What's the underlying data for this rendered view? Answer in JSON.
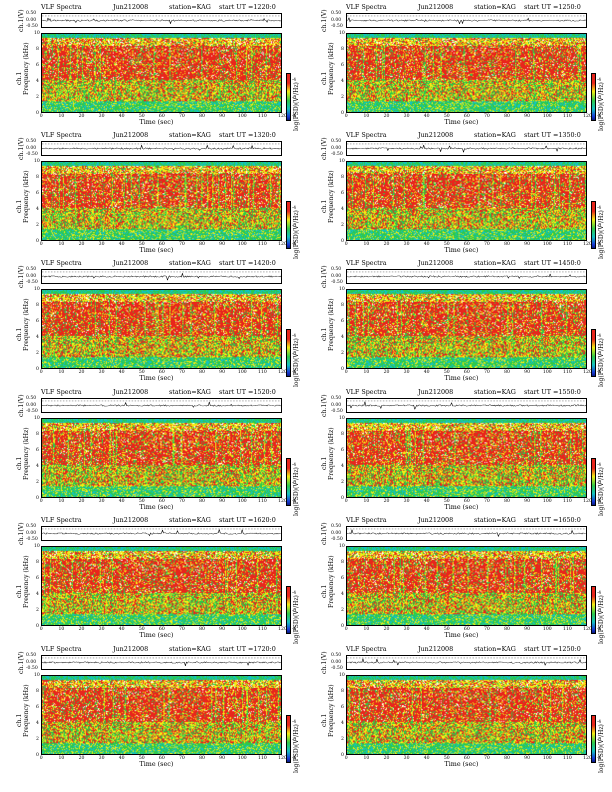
{
  "common": {
    "title": "VLF Spectra",
    "date": "Jun212008",
    "station": "station=KAG",
    "start_prefix": "start  UT  =",
    "ts_ylabel": "ch.1(V)",
    "spec_ylabel_line1": "ch.1",
    "spec_ylabel_line2": "Frequency  (kHz)",
    "xlabel": "Time  (sec)",
    "cbar_label": "log(PSD)(V²/Hz)",
    "ts_ticks": [
      "0.50",
      "0.00",
      "-0.50"
    ],
    "freq_ticks": [
      "10",
      "8",
      "6",
      "4",
      "2",
      "0"
    ],
    "time_ticks": [
      "0",
      "10",
      "20",
      "30",
      "40",
      "50",
      "60",
      "70",
      "80",
      "90",
      "100",
      "110",
      "120"
    ],
    "cbar_ticks": [
      "-4",
      "-5",
      "-6"
    ],
    "colors": {
      "red": "#e8261c",
      "yellow": "#f4ec14",
      "green": "#2fc94a",
      "cyan": "#14c2c2",
      "white": "#ffffff",
      "blue": "#1a3cd8"
    }
  },
  "chart_data": [
    {
      "type": "heatmap",
      "start_time": "1220:0",
      "xlim": [
        0,
        120
      ],
      "ylim": [
        0,
        10
      ],
      "ts_ylim": [
        -0.5,
        0.5
      ],
      "xlabel": "Time  (sec)",
      "ylabel": "Frequency  (kHz)"
    },
    {
      "type": "heatmap",
      "start_time": "1250:0",
      "xlim": [
        0,
        120
      ],
      "ylim": [
        0,
        10
      ],
      "ts_ylim": [
        -0.5,
        0.5
      ],
      "xlabel": "Time  (sec)",
      "ylabel": "Frequency  (kHz)"
    },
    {
      "type": "heatmap",
      "start_time": "1320:0",
      "xlim": [
        0,
        120
      ],
      "ylim": [
        0,
        10
      ],
      "ts_ylim": [
        -0.5,
        0.5
      ],
      "xlabel": "Time  (sec)",
      "ylabel": "Frequency  (kHz)"
    },
    {
      "type": "heatmap",
      "start_time": "1350:0",
      "xlim": [
        0,
        120
      ],
      "ylim": [
        0,
        10
      ],
      "ts_ylim": [
        -0.5,
        0.5
      ],
      "xlabel": "Time  (sec)",
      "ylabel": "Frequency  (kHz)"
    },
    {
      "type": "heatmap",
      "start_time": "1420:0",
      "xlim": [
        0,
        120
      ],
      "ylim": [
        0,
        10
      ],
      "ts_ylim": [
        -0.5,
        0.5
      ],
      "xlabel": "Time  (sec)",
      "ylabel": "Frequency  (kHz)"
    },
    {
      "type": "heatmap",
      "start_time": "1450:0",
      "xlim": [
        0,
        120
      ],
      "ylim": [
        0,
        10
      ],
      "ts_ylim": [
        -0.5,
        0.5
      ],
      "xlabel": "Time  (sec)",
      "ylabel": "Frequency  (kHz)"
    },
    {
      "type": "heatmap",
      "start_time": "1520:0",
      "xlim": [
        0,
        120
      ],
      "ylim": [
        0,
        10
      ],
      "ts_ylim": [
        -0.5,
        0.5
      ],
      "xlabel": "Time  (sec)",
      "ylabel": "Frequency  (kHz)"
    },
    {
      "type": "heatmap",
      "start_time": "1550:0",
      "xlim": [
        0,
        120
      ],
      "ylim": [
        0,
        10
      ],
      "ts_ylim": [
        -0.5,
        0.5
      ],
      "xlabel": "Time  (sec)",
      "ylabel": "Frequency  (kHz)"
    },
    {
      "type": "heatmap",
      "start_time": "1620:0",
      "xlim": [
        0,
        120
      ],
      "ylim": [
        0,
        10
      ],
      "ts_ylim": [
        -0.5,
        0.5
      ],
      "xlabel": "Time  (sec)",
      "ylabel": "Frequency  (kHz)"
    },
    {
      "type": "heatmap",
      "start_time": "1650:0",
      "xlim": [
        0,
        120
      ],
      "ylim": [
        0,
        10
      ],
      "ts_ylim": [
        -0.5,
        0.5
      ],
      "xlabel": "Time  (sec)",
      "ylabel": "Frequency  (kHz)"
    },
    {
      "type": "heatmap",
      "start_time": "1720:0",
      "xlim": [
        0,
        120
      ],
      "ylim": [
        0,
        10
      ],
      "ts_ylim": [
        -0.5,
        0.5
      ],
      "xlabel": "Time  (sec)",
      "ylabel": "Frequency  (kHz)"
    },
    {
      "type": "heatmap",
      "start_time": "1250:0",
      "xlim": [
        0,
        120
      ],
      "ylim": [
        0,
        10
      ],
      "ts_ylim": [
        -0.5,
        0.5
      ],
      "xlabel": "Time  (sec)",
      "ylabel": "Frequency  (kHz)"
    }
  ]
}
